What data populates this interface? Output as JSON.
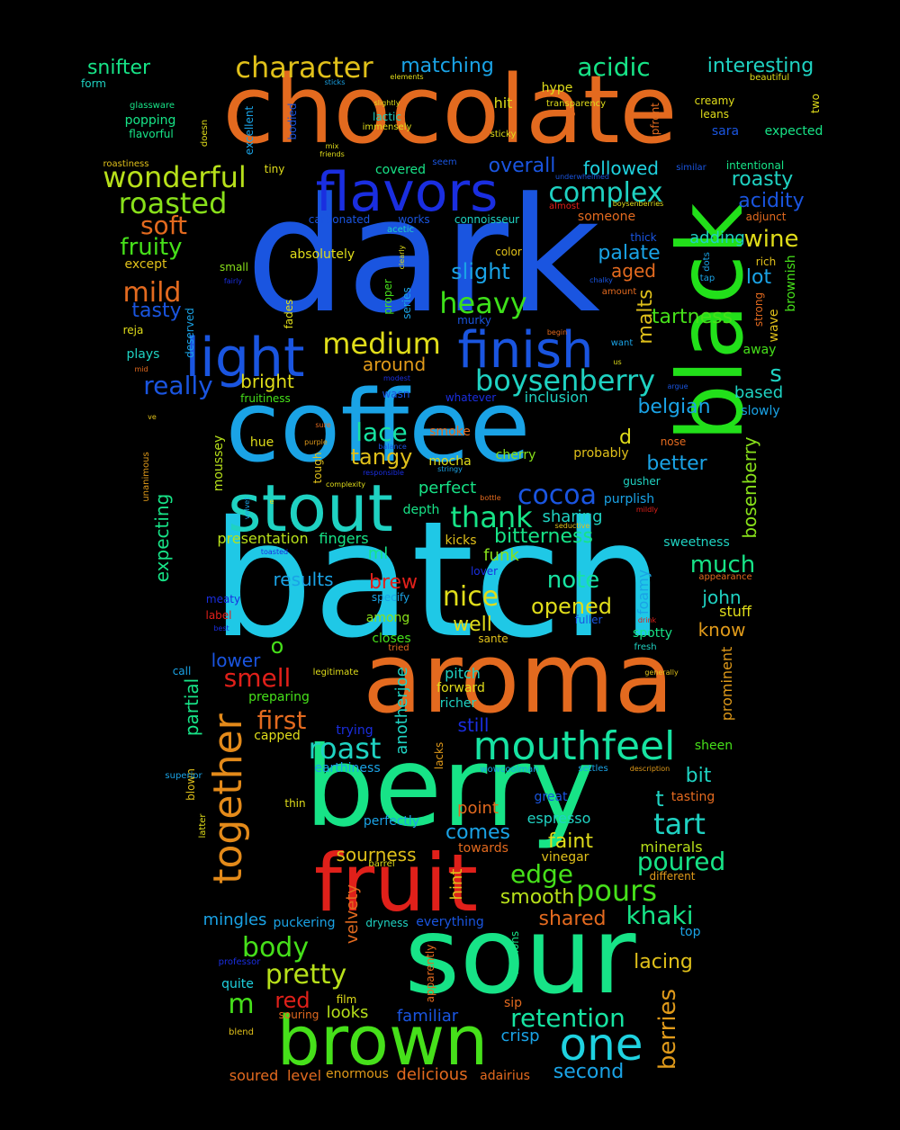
{
  "words": [
    {
      "text": "batch",
      "color": "#1fc8e6"
    },
    {
      "text": "dark",
      "color": "#1a55e0"
    },
    {
      "text": "chocolate",
      "color": "#e36a1f"
    },
    {
      "text": "coffee",
      "color": "#1aa3e6"
    },
    {
      "text": "sour",
      "color": "#17e387"
    },
    {
      "text": "berry",
      "color": "#17e387"
    },
    {
      "text": "aroma",
      "color": "#e36a1f"
    },
    {
      "text": "black",
      "color": "#22e01a"
    },
    {
      "text": "brown",
      "color": "#46e01a"
    },
    {
      "text": "fruit",
      "color": "#e0201a"
    },
    {
      "text": "stout",
      "color": "#1fd2c2"
    },
    {
      "text": "flavors",
      "color": "#1a2ee0"
    },
    {
      "text": "light",
      "color": "#1a55e0"
    },
    {
      "text": "finish",
      "color": "#1a55e0"
    },
    {
      "text": "mouthfeel",
      "color": "#17e3a2"
    },
    {
      "text": "together",
      "color": "#e38a1a"
    },
    {
      "text": "one",
      "color": "#1fd2e0"
    },
    {
      "text": "wonderful",
      "color": "#b7e01a"
    },
    {
      "text": "roasted",
      "color": "#88e01a"
    },
    {
      "text": "complex",
      "color": "#1fd2c2"
    },
    {
      "text": "boysenberry",
      "color": "#1fd2c2"
    },
    {
      "text": "character",
      "color": "#e0c01a"
    },
    {
      "text": "medium",
      "color": "#e0dd1a"
    },
    {
      "text": "heavy",
      "color": "#3ee01a"
    },
    {
      "text": "cocoa",
      "color": "#1a55e0"
    },
    {
      "text": "thank",
      "color": "#17e387"
    },
    {
      "text": "lace",
      "color": "#17e3a2"
    },
    {
      "text": "tangy",
      "color": "#e0c01a"
    },
    {
      "text": "pretty",
      "color": "#b7e01a"
    },
    {
      "text": "body",
      "color": "#46e01a"
    },
    {
      "text": "retention",
      "color": "#17e3a2"
    },
    {
      "text": "pours",
      "color": "#46e01a"
    },
    {
      "text": "poured",
      "color": "#17e387"
    },
    {
      "text": "tart",
      "color": "#1fd2c2"
    },
    {
      "text": "khaki",
      "color": "#17e387"
    },
    {
      "text": "berries",
      "color": "#e09a1a"
    },
    {
      "text": "acidic",
      "color": "#17e387"
    },
    {
      "text": "interesting",
      "color": "#1fd2c2"
    },
    {
      "text": "snifter",
      "color": "#17e387"
    },
    {
      "text": "matching",
      "color": "#1aa3e6"
    },
    {
      "text": "soft",
      "color": "#e36a1f"
    },
    {
      "text": "fruity",
      "color": "#46e01a"
    },
    {
      "text": "mild",
      "color": "#e36a1f"
    },
    {
      "text": "tasty",
      "color": "#1a55e0"
    },
    {
      "text": "really",
      "color": "#1a55e0"
    },
    {
      "text": "smell",
      "color": "#e0201a"
    },
    {
      "text": "first",
      "color": "#e36a1f"
    },
    {
      "text": "roast",
      "color": "#1fd2c2"
    },
    {
      "text": "nice",
      "color": "#e0dd1a"
    },
    {
      "text": "opened",
      "color": "#e0dd1a"
    },
    {
      "text": "note",
      "color": "#17e3a2"
    },
    {
      "text": "much",
      "color": "#17e387"
    },
    {
      "text": "edge",
      "color": "#46e01a"
    },
    {
      "text": "smooth",
      "color": "#b7e01a"
    },
    {
      "text": "shared",
      "color": "#e36a1f"
    },
    {
      "text": "red",
      "color": "#e0201a"
    },
    {
      "text": "malts",
      "color": "#e0c01a"
    },
    {
      "text": "tartness",
      "color": "#46e01a"
    },
    {
      "text": "wine",
      "color": "#e0dd1a"
    },
    {
      "text": "roasty",
      "color": "#1fd2c2"
    },
    {
      "text": "acidity",
      "color": "#1a55e0"
    },
    {
      "text": "overall",
      "color": "#1a55e0"
    },
    {
      "text": "followed",
      "color": "#1fd2e0"
    },
    {
      "text": "palate",
      "color": "#1aa3e6"
    },
    {
      "text": "aged",
      "color": "#e36a1f"
    },
    {
      "text": "slight",
      "color": "#1aa3e6"
    },
    {
      "text": "lot",
      "color": "#1aa3e6"
    },
    {
      "text": "belgian",
      "color": "#1aa3e6"
    },
    {
      "text": "better",
      "color": "#1aa3e6"
    },
    {
      "text": "bosenberry",
      "color": "#88e01a"
    },
    {
      "text": "adding",
      "color": "#1fd2c2"
    },
    {
      "text": "bright",
      "color": "#e0dd1a"
    },
    {
      "text": "around",
      "color": "#e09a1a"
    },
    {
      "text": "partial",
      "color": "#17e387"
    },
    {
      "text": "expecting",
      "color": "#17e387"
    },
    {
      "text": "results",
      "color": "#1aa3e6"
    },
    {
      "text": "brew",
      "color": "#e0201a"
    },
    {
      "text": "bitterness",
      "color": "#17e387"
    },
    {
      "text": "sharing",
      "color": "#1fd2c2"
    },
    {
      "text": "perfect",
      "color": "#17e387"
    },
    {
      "text": "well",
      "color": "#e0dd1a"
    },
    {
      "text": "comes",
      "color": "#1aa3e6"
    },
    {
      "text": "faint",
      "color": "#e0dd1a"
    },
    {
      "text": "sourness",
      "color": "#e0c01a"
    },
    {
      "text": "pitch",
      "color": "#1fd2c2"
    },
    {
      "text": "still",
      "color": "#1a2ee0"
    },
    {
      "text": "know",
      "color": "#e09a1a"
    },
    {
      "text": "john",
      "color": "#1fd2c2"
    },
    {
      "text": "lacing",
      "color": "#e0c01a"
    },
    {
      "text": "second",
      "color": "#1aa3e6"
    },
    {
      "text": "familiar",
      "color": "#1a55e0"
    },
    {
      "text": "level",
      "color": "#e36a1f"
    },
    {
      "text": "delicious",
      "color": "#e36a1f"
    },
    {
      "text": "crisp",
      "color": "#1aa3e6"
    },
    {
      "text": "looks",
      "color": "#b7e01a"
    },
    {
      "text": "mingles",
      "color": "#1aa3e6"
    },
    {
      "text": "m",
      "color": "#46e01a"
    },
    {
      "text": "lower",
      "color": "#1a55e0"
    },
    {
      "text": "point",
      "color": "#e36a1f"
    },
    {
      "text": "espresso",
      "color": "#1fd2c2"
    },
    {
      "text": "minerals",
      "color": "#b7e01a"
    },
    {
      "text": "hint",
      "color": "#e0c01a"
    },
    {
      "text": "velvety",
      "color": "#e36a1f"
    },
    {
      "text": "another",
      "color": "#1fd2c2"
    },
    {
      "text": "joe",
      "color": "#1fd2c2"
    },
    {
      "text": "s",
      "color": "#1fd2c2"
    },
    {
      "text": "d",
      "color": "#e0dd1a"
    },
    {
      "text": "o",
      "color": "#46e01a"
    },
    {
      "text": "t",
      "color": "#1fd2c2"
    },
    {
      "text": "ml",
      "color": "#17e387"
    },
    {
      "text": "smoke",
      "color": "#e36a1f"
    },
    {
      "text": "mocha",
      "color": "#e0dd1a"
    },
    {
      "text": "cherry",
      "color": "#88e01a"
    },
    {
      "text": "probably",
      "color": "#e0c01a"
    },
    {
      "text": "funk",
      "color": "#88e01a"
    },
    {
      "text": "kicks",
      "color": "#e0c01a"
    },
    {
      "text": "depth",
      "color": "#17e387"
    },
    {
      "text": "fingers",
      "color": "#17e387"
    },
    {
      "text": "presentation",
      "color": "#b7e01a"
    },
    {
      "text": "inclusion",
      "color": "#1fd2c2"
    },
    {
      "text": "based",
      "color": "#1fd2c2"
    },
    {
      "text": "slowly",
      "color": "#1aa3e6"
    },
    {
      "text": "sweetness",
      "color": "#1fd2c2"
    },
    {
      "text": "stuff",
      "color": "#e0dd1a"
    },
    {
      "text": "foamy",
      "color": "#1aa3e6"
    },
    {
      "text": "prominent",
      "color": "#e09a1a"
    },
    {
      "text": "sheen",
      "color": "#46e01a"
    },
    {
      "text": "tasting",
      "color": "#e36a1f"
    },
    {
      "text": "different",
      "color": "#e09a1a"
    },
    {
      "text": "top",
      "color": "#1aa3e6"
    },
    {
      "text": "sip",
      "color": "#e36a1f"
    },
    {
      "text": "versions",
      "color": "#17e387"
    },
    {
      "text": "apparently",
      "color": "#e36a1f"
    },
    {
      "text": "souring",
      "color": "#e36a1f"
    },
    {
      "text": "adairius",
      "color": "#e36a1f"
    },
    {
      "text": "enormous",
      "color": "#e09a1a"
    },
    {
      "text": "soured",
      "color": "#e36a1f"
    },
    {
      "text": "quite",
      "color": "#1fd2e0"
    },
    {
      "text": "film",
      "color": "#e0dd1a"
    },
    {
      "text": "blend",
      "color": "#e0c01a"
    },
    {
      "text": "professor",
      "color": "#1a2ee0"
    },
    {
      "text": "dryness",
      "color": "#1fd2c2"
    },
    {
      "text": "everything",
      "color": "#1a55e0"
    },
    {
      "text": "puckering",
      "color": "#1aa3e6"
    },
    {
      "text": "barrel",
      "color": "#e0dd1a"
    },
    {
      "text": "towards",
      "color": "#e36a1f"
    },
    {
      "text": "vinegar",
      "color": "#e0c01a"
    },
    {
      "text": "great",
      "color": "#1a55e0"
    },
    {
      "text": "perfectly",
      "color": "#1aa3e6"
    },
    {
      "text": "thin",
      "color": "#e0dd1a"
    },
    {
      "text": "blown",
      "color": "#e0c01a"
    },
    {
      "text": "latter",
      "color": "#e0dd1a"
    },
    {
      "text": "lacks",
      "color": "#e09a1a"
    },
    {
      "text": "earthiness",
      "color": "#1aa3e6"
    },
    {
      "text": "wowcoolman",
      "color": "#1aa3e6"
    },
    {
      "text": "settles",
      "color": "#1aa3e6"
    },
    {
      "text": "description",
      "color": "#e09a1a"
    },
    {
      "text": "bit",
      "color": "#1fd2c2"
    },
    {
      "text": "capped",
      "color": "#e0dd1a"
    },
    {
      "text": "trying",
      "color": "#1a2ee0"
    },
    {
      "text": "richer",
      "color": "#1fd2c2"
    },
    {
      "text": "forward",
      "color": "#e0dd1a"
    },
    {
      "text": "preparing",
      "color": "#46e01a"
    },
    {
      "text": "legitimate",
      "color": "#e0dd1a"
    },
    {
      "text": "call",
      "color": "#1aa3e6"
    },
    {
      "text": "superior",
      "color": "#1aa3e6"
    },
    {
      "text": "closes",
      "color": "#46e01a"
    },
    {
      "text": "tried",
      "color": "#e36a1f"
    },
    {
      "text": "sante",
      "color": "#e0c01a"
    },
    {
      "text": "among",
      "color": "#88e01a"
    },
    {
      "text": "specify",
      "color": "#1aa3e6"
    },
    {
      "text": "fuller",
      "color": "#1a55e0"
    },
    {
      "text": "spotty",
      "color": "#17e387"
    },
    {
      "text": "fresh",
      "color": "#1fd2c2"
    },
    {
      "text": "generally",
      "color": "#e0c01a"
    },
    {
      "text": "drink",
      "color": "#e0201a"
    },
    {
      "text": "appearance",
      "color": "#e36a1f"
    },
    {
      "text": "lover",
      "color": "#1a2ee0"
    },
    {
      "text": "gusher",
      "color": "#1fd2c2"
    },
    {
      "text": "purplish",
      "color": "#1aa3e6"
    },
    {
      "text": "mildly",
      "color": "#e0201a"
    },
    {
      "text": "seductive",
      "color": "#e0c01a"
    },
    {
      "text": "bottle",
      "color": "#e36a1f"
    },
    {
      "text": "stringy",
      "color": "#1aa3e6"
    },
    {
      "text": "responsible",
      "color": "#1a2ee0"
    },
    {
      "text": "complexity",
      "color": "#e0dd1a"
    },
    {
      "text": "toasted",
      "color": "#1a2ee0"
    },
    {
      "text": "velvet",
      "color": "#1aa3e6"
    },
    {
      "text": "e",
      "color": "#e0dd1a"
    },
    {
      "text": "tough",
      "color": "#e0c01a"
    },
    {
      "text": "hue",
      "color": "#e0dd1a"
    },
    {
      "text": "moussey",
      "color": "#b7e01a"
    },
    {
      "text": "unanimous",
      "color": "#e09a1a"
    },
    {
      "text": "ve",
      "color": "#e0c01a"
    },
    {
      "text": "sure",
      "color": "#e36a1f"
    },
    {
      "text": "purple",
      "color": "#e09a1a"
    },
    {
      "text": "balance",
      "color": "#1a55e0"
    },
    {
      "text": "label",
      "color": "#e0201a"
    },
    {
      "text": "meaty",
      "color": "#1a2ee0"
    },
    {
      "text": "best",
      "color": "#1a2ee0"
    },
    {
      "text": "wasn",
      "color": "#1a55e0"
    },
    {
      "text": "whatever",
      "color": "#1a2ee0"
    },
    {
      "text": "modest",
      "color": "#1a2ee0"
    },
    {
      "text": "argue",
      "color": "#1a55e0"
    },
    {
      "text": "nose",
      "color": "#e36a1f"
    },
    {
      "text": "fruitiness",
      "color": "#46e01a"
    },
    {
      "text": "mid",
      "color": "#e36a1f"
    },
    {
      "text": "plays",
      "color": "#1fd2c2"
    },
    {
      "text": "deserved",
      "color": "#1aa3e6"
    },
    {
      "text": "fades",
      "color": "#e0dd1a"
    },
    {
      "text": "reja",
      "color": "#e0dd1a"
    },
    {
      "text": "us",
      "color": "#e0dd1a"
    },
    {
      "text": "want",
      "color": "#1aa3e6"
    },
    {
      "text": "begin",
      "color": "#e36a1f"
    },
    {
      "text": "murky",
      "color": "#1a55e0"
    },
    {
      "text": "series",
      "color": "#1aa3e6"
    },
    {
      "text": "proper",
      "color": "#46e01a"
    },
    {
      "text": "clearly",
      "color": "#e0dd1a"
    },
    {
      "text": "away",
      "color": "#46e01a"
    },
    {
      "text": "wave",
      "color": "#e0c01a"
    },
    {
      "text": "strong",
      "color": "#e36a1f"
    },
    {
      "text": "brownish",
      "color": "#46e01a"
    },
    {
      "text": "rich",
      "color": "#e0c01a"
    },
    {
      "text": "tap",
      "color": "#1aa3e6"
    },
    {
      "text": "dots",
      "color": "#1aa3e6"
    },
    {
      "text": "amount",
      "color": "#e36a1f"
    },
    {
      "text": "chalky",
      "color": "#1a55e0"
    },
    {
      "text": "thick",
      "color": "#1a55e0"
    },
    {
      "text": "color",
      "color": "#e0c01a"
    },
    {
      "text": "absolutely",
      "color": "#e0dd1a"
    },
    {
      "text": "small",
      "color": "#88e01a"
    },
    {
      "text": "fairly",
      "color": "#1a2ee0"
    },
    {
      "text": "except",
      "color": "#e0c01a"
    },
    {
      "text": "carbonated",
      "color": "#1a55e0"
    },
    {
      "text": "works",
      "color": "#1a55e0"
    },
    {
      "text": "connoisseur",
      "color": "#1fd2c2"
    },
    {
      "text": "acetic",
      "color": "#1fd2c2"
    },
    {
      "text": "covered",
      "color": "#17e387"
    },
    {
      "text": "someone",
      "color": "#e36a1f"
    },
    {
      "text": "adjunct",
      "color": "#e36a1f"
    },
    {
      "text": "almost",
      "color": "#e0201a"
    },
    {
      "text": "boysenberries",
      "color": "#e0dd1a"
    },
    {
      "text": "underwhelmed",
      "color": "#1a55e0"
    },
    {
      "text": "similar",
      "color": "#1a55e0"
    },
    {
      "text": "intentional",
      "color": "#17e387"
    },
    {
      "text": "seem",
      "color": "#1a55e0"
    },
    {
      "text": "tiny",
      "color": "#e0dd1a"
    },
    {
      "text": "roastiness",
      "color": "#e0c01a"
    },
    {
      "text": "excellent",
      "color": "#1aa3e6"
    },
    {
      "text": "doesn",
      "color": "#e0dd1a"
    },
    {
      "text": "bodied",
      "color": "#1a55e0"
    },
    {
      "text": "mix",
      "color": "#e0dd1a"
    },
    {
      "text": "friends",
      "color": "#e0dd1a"
    },
    {
      "text": "sticky",
      "color": "#e0dd1a"
    },
    {
      "text": "upfront",
      "color": "#e36a1f"
    },
    {
      "text": "sara",
      "color": "#1a55e0"
    },
    {
      "text": "expected",
      "color": "#17e387"
    },
    {
      "text": "leans",
      "color": "#e0dd1a"
    },
    {
      "text": "creamy",
      "color": "#e0dd1a"
    },
    {
      "text": "two",
      "color": "#e0dd1a"
    },
    {
      "text": "overtop",
      "color": "#e36a1f"
    },
    {
      "text": "transparency",
      "color": "#e0dd1a"
    },
    {
      "text": "hit",
      "color": "#e0dd1a"
    },
    {
      "text": "hype",
      "color": "#e0dd1a"
    },
    {
      "text": "lactic",
      "color": "#1fd2c2"
    },
    {
      "text": "immensely",
      "color": "#e0dd1a"
    },
    {
      "text": "slightly",
      "color": "#e0dd1a"
    },
    {
      "text": "elements",
      "color": "#e0dd1a"
    },
    {
      "text": "sticks",
      "color": "#1aa3e6"
    },
    {
      "text": "form",
      "color": "#1fd2c2"
    },
    {
      "text": "popping",
      "color": "#17e387"
    },
    {
      "text": "glassware",
      "color": "#17e387"
    },
    {
      "text": "flavorful",
      "color": "#17e387"
    },
    {
      "text": "beautiful",
      "color": "#e0dd1a"
    }
  ]
}
